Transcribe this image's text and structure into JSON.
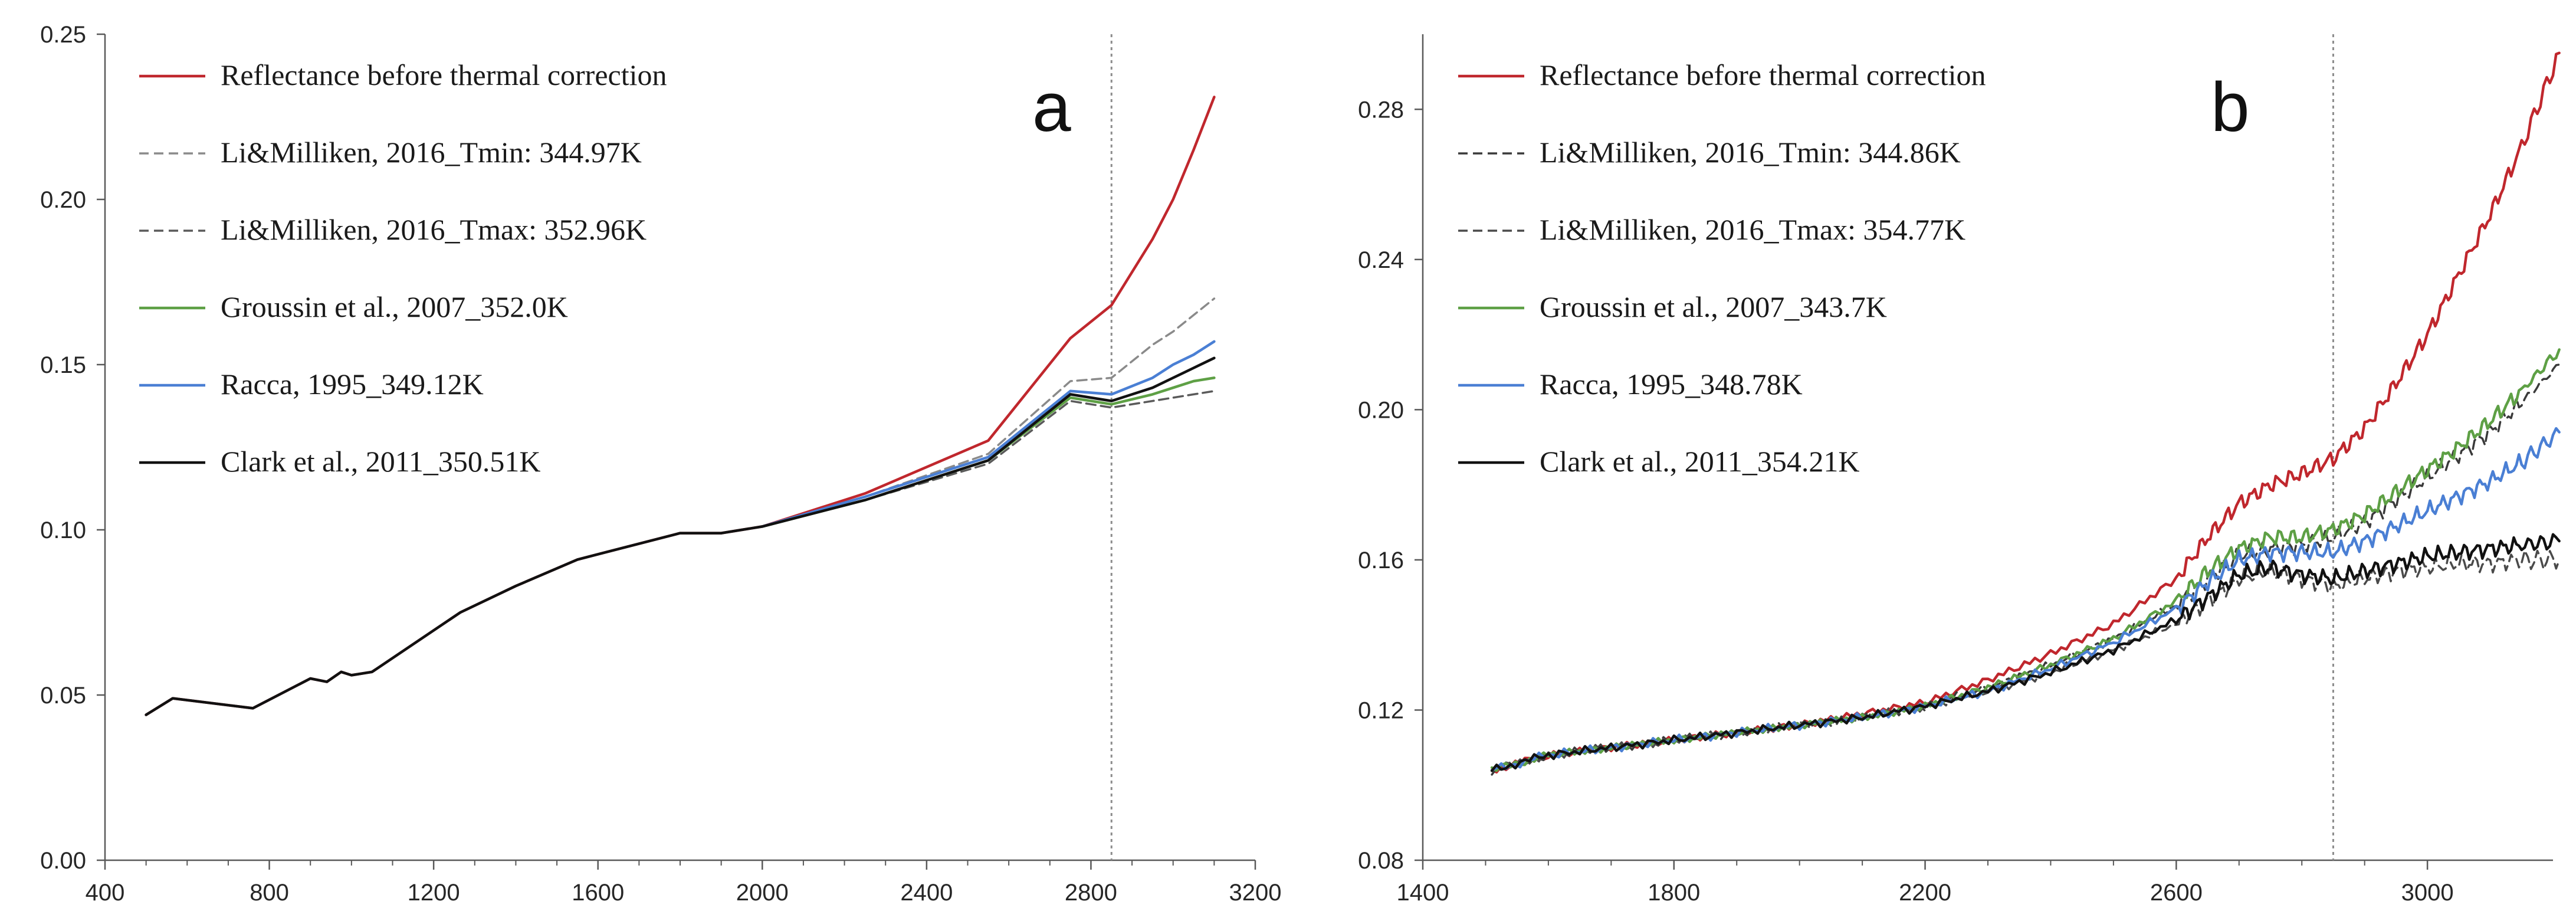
{
  "colors": {
    "reflectance": "#c0272d",
    "li_tmin": "#8a8a8a",
    "li_tmax": "#5a5a5a",
    "li_tmin_b": "#3a3a3a",
    "li_tmax_b": "#4a4a4a",
    "groussin": "#5ea045",
    "racca": "#4a7fd4",
    "clark": "#111111",
    "axis": "#595959",
    "vline": "#8c8c8c"
  },
  "chart_data": [
    {
      "id": "a",
      "type": "line",
      "panel_label": "a",
      "xlabel": "",
      "ylabel": "",
      "xlim": [
        400,
        3200
      ],
      "ylim": [
        0.0,
        0.25
      ],
      "xticks": [
        400,
        800,
        1200,
        1600,
        2000,
        2400,
        2800,
        3200
      ],
      "xtick_labels": [
        "400",
        "800",
        "1200",
        "1600",
        "2000",
        "2400",
        "2800",
        "3200"
      ],
      "yticks": [
        0.0,
        0.05,
        0.1,
        0.15,
        0.2,
        0.25
      ],
      "ytick_labels": [
        "0.00",
        "0.05",
        "0.10",
        "0.15",
        "0.20",
        "0.25"
      ],
      "vline_x": 2850,
      "legend_position": "top-left",
      "series": [
        {
          "name": "Reflectance before thermal correction",
          "color_key": "reflectance",
          "dash": "solid",
          "x": [
            500,
            565,
            760,
            900,
            940,
            975,
            1000,
            1050,
            1265,
            1400,
            1550,
            1800,
            1900,
            2000,
            2250,
            2550,
            2750,
            2850,
            2950,
            3000,
            3050,
            3100
          ],
          "y": [
            0.044,
            0.049,
            0.046,
            0.055,
            0.054,
            0.057,
            0.056,
            0.057,
            0.075,
            0.083,
            0.091,
            0.099,
            0.099,
            0.101,
            0.111,
            0.127,
            0.158,
            0.168,
            0.188,
            0.2,
            0.215,
            0.231
          ]
        },
        {
          "name": "Li&Milliken, 2016_Tmin: 344.97K",
          "color_key": "li_tmin",
          "dash": "dashed",
          "x": [
            2000,
            2250,
            2550,
            2750,
            2850,
            2950,
            3000,
            3050,
            3100
          ],
          "y": [
            0.101,
            0.11,
            0.123,
            0.145,
            0.146,
            0.156,
            0.16,
            0.165,
            0.17
          ]
        },
        {
          "name": "Li&Milliken, 2016_Tmax: 352.96K",
          "color_key": "li_tmax",
          "dash": "dashed",
          "x": [
            2000,
            2250,
            2550,
            2750,
            2850,
            2950,
            3000,
            3050,
            3100
          ],
          "y": [
            0.101,
            0.109,
            0.12,
            0.139,
            0.137,
            0.139,
            0.14,
            0.141,
            0.142
          ]
        },
        {
          "name": "Groussin et al., 2007_352.0K",
          "color_key": "groussin",
          "dash": "solid",
          "x": [
            2000,
            2250,
            2550,
            2750,
            2850,
            2950,
            3000,
            3050,
            3100
          ],
          "y": [
            0.101,
            0.109,
            0.121,
            0.14,
            0.138,
            0.141,
            0.143,
            0.145,
            0.146
          ]
        },
        {
          "name": "Racca, 1995_349.12K",
          "color_key": "racca",
          "dash": "solid",
          "x": [
            2000,
            2250,
            2550,
            2750,
            2850,
            2950,
            3000,
            3050,
            3100
          ],
          "y": [
            0.101,
            0.11,
            0.122,
            0.142,
            0.141,
            0.146,
            0.15,
            0.153,
            0.157
          ]
        },
        {
          "name": "Clark et al., 2011_350.51K",
          "color_key": "clark",
          "dash": "solid",
          "x": [
            500,
            565,
            760,
            900,
            940,
            975,
            1000,
            1050,
            1265,
            1400,
            1550,
            1800,
            1900,
            2000,
            2250,
            2550,
            2750,
            2850,
            2950,
            3000,
            3050,
            3100
          ],
          "y": [
            0.044,
            0.049,
            0.046,
            0.055,
            0.054,
            0.057,
            0.056,
            0.057,
            0.075,
            0.083,
            0.091,
            0.099,
            0.099,
            0.101,
            0.109,
            0.121,
            0.141,
            0.139,
            0.143,
            0.146,
            0.149,
            0.152
          ]
        }
      ]
    },
    {
      "id": "b",
      "type": "line",
      "panel_label": "b",
      "xlabel": "",
      "ylabel": "",
      "xlim": [
        1400,
        3200
      ],
      "ylim": [
        0.08,
        0.3
      ],
      "xticks": [
        1400,
        1800,
        2200,
        2600,
        3000
      ],
      "xtick_labels": [
        "1400",
        "1800",
        "2200",
        "2600",
        "3000"
      ],
      "yticks": [
        0.08,
        0.12,
        0.16,
        0.2,
        0.24,
        0.28
      ],
      "ytick_labels": [
        "0.08",
        "0.12",
        "0.16",
        "0.20",
        "0.24",
        "0.28"
      ],
      "vline_x": 2850,
      "legend_position": "top-left",
      "series": [
        {
          "name": "Reflectance before thermal correction",
          "color_key": "reflectance",
          "dash": "solid",
          "x": [
            1510,
            1600,
            1700,
            1800,
            1900,
            2000,
            2100,
            2200,
            2300,
            2400,
            2500,
            2600,
            2650,
            2700,
            2750,
            2800,
            2850,
            2900,
            2950,
            3000,
            3050,
            3100,
            3150,
            3210
          ],
          "y": [
            0.104,
            0.108,
            0.11,
            0.112,
            0.114,
            0.116,
            0.119,
            0.122,
            0.128,
            0.135,
            0.143,
            0.155,
            0.166,
            0.175,
            0.18,
            0.183,
            0.187,
            0.195,
            0.207,
            0.22,
            0.236,
            0.252,
            0.27,
            0.295
          ]
        },
        {
          "name": "Li&Milliken, 2016_Tmin: 344.86K",
          "color_key": "li_tmin_b",
          "dash": "dashed",
          "x": [
            1510,
            1600,
            1700,
            1800,
            1900,
            2000,
            2100,
            2200,
            2300,
            2400,
            2500,
            2600,
            2650,
            2700,
            2750,
            2800,
            2850,
            2900,
            2950,
            3000,
            3050,
            3100,
            3150,
            3210
          ],
          "y": [
            0.104,
            0.108,
            0.11,
            0.112,
            0.114,
            0.116,
            0.118,
            0.121,
            0.126,
            0.132,
            0.139,
            0.148,
            0.155,
            0.161,
            0.163,
            0.164,
            0.166,
            0.17,
            0.176,
            0.182,
            0.188,
            0.194,
            0.202,
            0.212
          ]
        },
        {
          "name": "Li&Milliken, 2016_Tmax: 354.77K",
          "color_key": "li_tmax_b",
          "dash": "dashed",
          "x": [
            1510,
            1600,
            1700,
            1800,
            1900,
            2000,
            2100,
            2200,
            2300,
            2400,
            2500,
            2600,
            2650,
            2700,
            2750,
            2800,
            2850,
            2900,
            2950,
            3000,
            3050,
            3100,
            3150,
            3210
          ],
          "y": [
            0.104,
            0.108,
            0.11,
            0.112,
            0.114,
            0.116,
            0.118,
            0.121,
            0.125,
            0.13,
            0.136,
            0.143,
            0.149,
            0.155,
            0.157,
            0.155,
            0.153,
            0.155,
            0.157,
            0.158,
            0.159,
            0.159,
            0.16,
            0.16
          ]
        },
        {
          "name": "Groussin et al., 2007_343.7K",
          "color_key": "groussin",
          "dash": "solid",
          "x": [
            1510,
            1600,
            1700,
            1800,
            1900,
            2000,
            2100,
            2200,
            2300,
            2400,
            2500,
            2600,
            2650,
            2700,
            2750,
            2800,
            2850,
            2900,
            2950,
            3000,
            3050,
            3100,
            3150,
            3210
          ],
          "y": [
            0.104,
            0.108,
            0.11,
            0.112,
            0.114,
            0.116,
            0.118,
            0.121,
            0.126,
            0.132,
            0.139,
            0.149,
            0.157,
            0.163,
            0.166,
            0.166,
            0.168,
            0.172,
            0.178,
            0.184,
            0.19,
            0.197,
            0.205,
            0.216
          ]
        },
        {
          "name": "Racca, 1995_348.78K",
          "color_key": "racca",
          "dash": "solid",
          "x": [
            1510,
            1600,
            1700,
            1800,
            1900,
            2000,
            2100,
            2200,
            2300,
            2400,
            2500,
            2600,
            2650,
            2700,
            2750,
            2800,
            2850,
            2900,
            2950,
            3000,
            3050,
            3100,
            3150,
            3210
          ],
          "y": [
            0.104,
            0.108,
            0.11,
            0.112,
            0.114,
            0.116,
            0.118,
            0.121,
            0.125,
            0.131,
            0.138,
            0.147,
            0.154,
            0.16,
            0.162,
            0.162,
            0.162,
            0.165,
            0.169,
            0.173,
            0.177,
            0.181,
            0.186,
            0.194
          ]
        },
        {
          "name": "Clark et al., 2011_354.21K",
          "color_key": "clark",
          "dash": "solid",
          "x": [
            1510,
            1600,
            1700,
            1800,
            1900,
            2000,
            2100,
            2200,
            2300,
            2400,
            2500,
            2600,
            2650,
            2700,
            2750,
            2800,
            2850,
            2900,
            2950,
            3000,
            3050,
            3100,
            3150,
            3210
          ],
          "y": [
            0.104,
            0.108,
            0.11,
            0.112,
            0.114,
            0.116,
            0.118,
            0.121,
            0.125,
            0.13,
            0.136,
            0.144,
            0.15,
            0.156,
            0.158,
            0.156,
            0.155,
            0.157,
            0.159,
            0.161,
            0.162,
            0.163,
            0.164,
            0.165
          ]
        }
      ]
    }
  ]
}
